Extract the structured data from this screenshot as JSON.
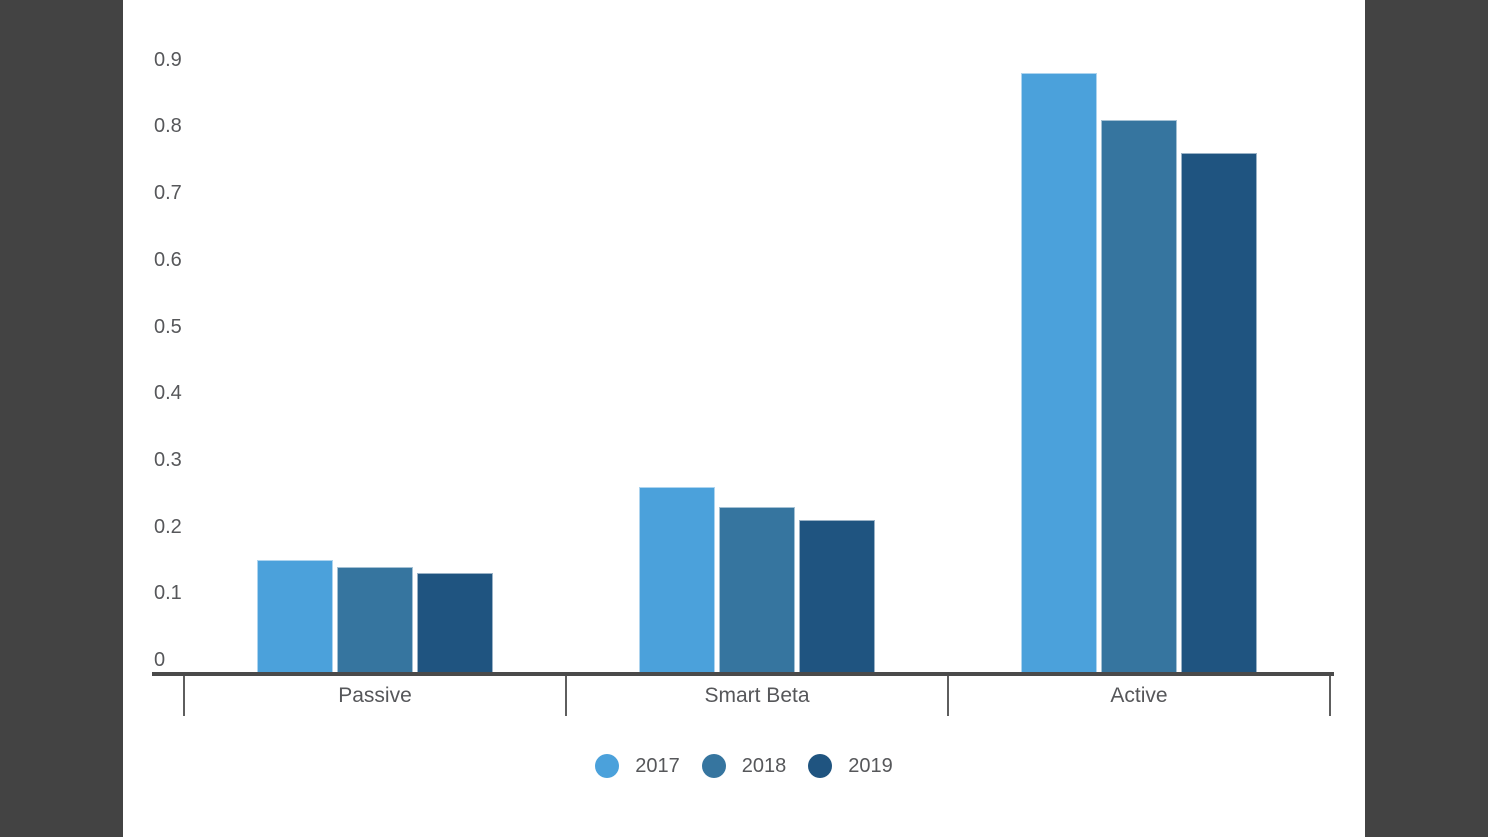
{
  "window": {
    "backdrop_color": "#434343",
    "panel_color": "#ffffff"
  },
  "chart_data": {
    "type": "bar",
    "title": "",
    "xlabel": "",
    "ylabel": "",
    "categories": [
      "Passive",
      "Smart Beta",
      "Active"
    ],
    "series": [
      {
        "name": "2017",
        "color": "#4BA1DB",
        "values": [
          0.15,
          0.26,
          0.88
        ]
      },
      {
        "name": "2018",
        "color": "#36759F",
        "values": [
          0.14,
          0.23,
          0.81
        ]
      },
      {
        "name": "2019",
        "color": "#1F5480",
        "values": [
          0.13,
          0.21,
          0.76
        ]
      }
    ],
    "ylim": [
      0,
      0.9
    ],
    "y_ticks": [
      "0",
      "0.1",
      "0.2",
      "0.3",
      "0.4",
      "0.5",
      "0.6",
      "0.7",
      "0.8",
      "0.9"
    ],
    "grid": false,
    "legend_position": "bottom",
    "axis_color": "#4A4A4A",
    "tick_color": "#5E5E5E",
    "label_color": "#56575A"
  }
}
